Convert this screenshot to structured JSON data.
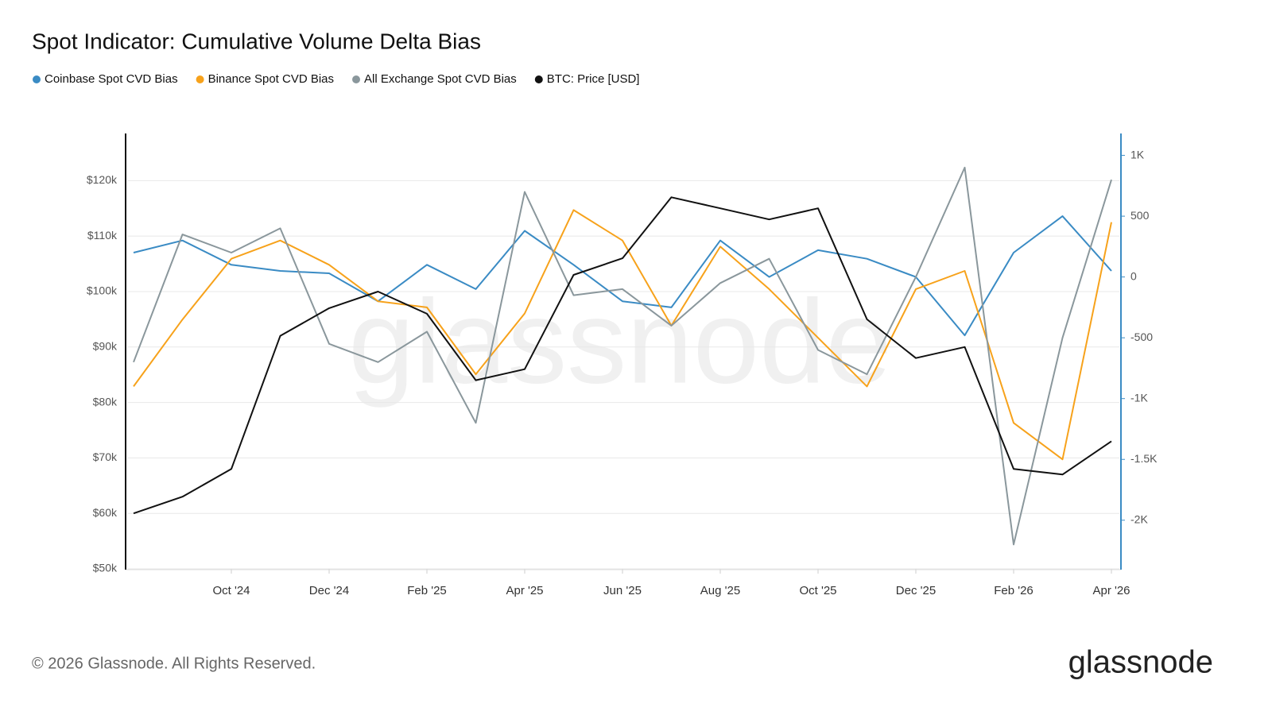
{
  "chart_data": {
    "type": "line",
    "title": "Spot Indicator: Cumulative Volume Delta Bias",
    "x": [
      "2024-08",
      "2024-09",
      "2024-10",
      "2024-11",
      "2024-12",
      "2025-01",
      "2025-02",
      "2025-03",
      "2025-04",
      "2025-05",
      "2025-06",
      "2025-07",
      "2025-08",
      "2025-09",
      "2025-10",
      "2025-11",
      "2025-12",
      "2026-01",
      "2026-02",
      "2026-03",
      "2026-04"
    ],
    "xlim": [
      "2024-08",
      "2026-04"
    ],
    "xticks": [
      {
        "value": "2024-10",
        "label": "Oct '24"
      },
      {
        "value": "2024-12",
        "label": "Dec '24"
      },
      {
        "value": "2025-02",
        "label": "Feb '25"
      },
      {
        "value": "2025-04",
        "label": "Apr '25"
      },
      {
        "value": "2025-06",
        "label": "Jun '25"
      },
      {
        "value": "2025-08",
        "label": "Aug '25"
      },
      {
        "value": "2025-10",
        "label": "Oct '25"
      },
      {
        "value": "2025-12",
        "label": "Dec '25"
      },
      {
        "value": "2026-02",
        "label": "Feb '26"
      },
      {
        "value": "2026-04",
        "label": "Apr '26"
      }
    ],
    "ylim": [
      50000,
      128500
    ],
    "yticks": [
      {
        "value": 50000,
        "label": "$50k"
      },
      {
        "value": 60000,
        "label": "$60k"
      },
      {
        "value": 70000,
        "label": "$70k"
      },
      {
        "value": 80000,
        "label": "$80k"
      },
      {
        "value": 90000,
        "label": "$90k"
      },
      {
        "value": 100000,
        "label": "$100k"
      },
      {
        "value": 110000,
        "label": "$110k"
      },
      {
        "value": 120000,
        "label": "$120k"
      }
    ],
    "y2lim": [
      -2400,
      1180
    ],
    "y2ticks": [
      {
        "value": 1000,
        "label": "1K"
      },
      500,
      0,
      -500,
      {
        "value": -1000,
        "label": "-1K"
      },
      {
        "value": -1500,
        "label": "-1.5K"
      },
      {
        "value": -2000,
        "label": "-2K"
      }
    ],
    "grid": true,
    "series": [
      {
        "name": "Coinbase Spot CVD Bias",
        "color": "#3a8bc4",
        "axis": "y2",
        "values": [
          200,
          300,
          100,
          50,
          30,
          -200,
          100,
          -100,
          380,
          100,
          -200,
          -250,
          300,
          0,
          220,
          150,
          0,
          -480,
          200,
          500,
          50
        ]
      },
      {
        "name": "Binance Spot CVD Bias",
        "color": "#f7a21b",
        "axis": "y2",
        "values": [
          -900,
          -350,
          150,
          300,
          100,
          -200,
          -250,
          -800,
          -300,
          550,
          300,
          -400,
          250,
          -100,
          -500,
          -900,
          -100,
          50,
          -1200,
          -1500,
          450
        ]
      },
      {
        "name": "All Exchange Spot CVD Bias",
        "color": "#8a979c",
        "axis": "y2",
        "values": [
          -700,
          350,
          200,
          400,
          -550,
          -700,
          -450,
          -1200,
          700,
          -150,
          -100,
          -400,
          -50,
          150,
          -600,
          -800,
          0,
          900,
          -2200,
          -500,
          800
        ]
      },
      {
        "name": "BTC: Price [USD]",
        "color": "#111111",
        "values": [
          60000,
          63000,
          68000,
          92000,
          97000,
          100000,
          96000,
          84000,
          86000,
          103000,
          106000,
          117000,
          115000,
          113000,
          115000,
          95000,
          88000,
          90000,
          68000,
          67000,
          73000
        ]
      }
    ],
    "watermark": "glassnode",
    "footer": "© 2026 Glassnode. All Rights Reserved.",
    "logo": "glassnode"
  }
}
